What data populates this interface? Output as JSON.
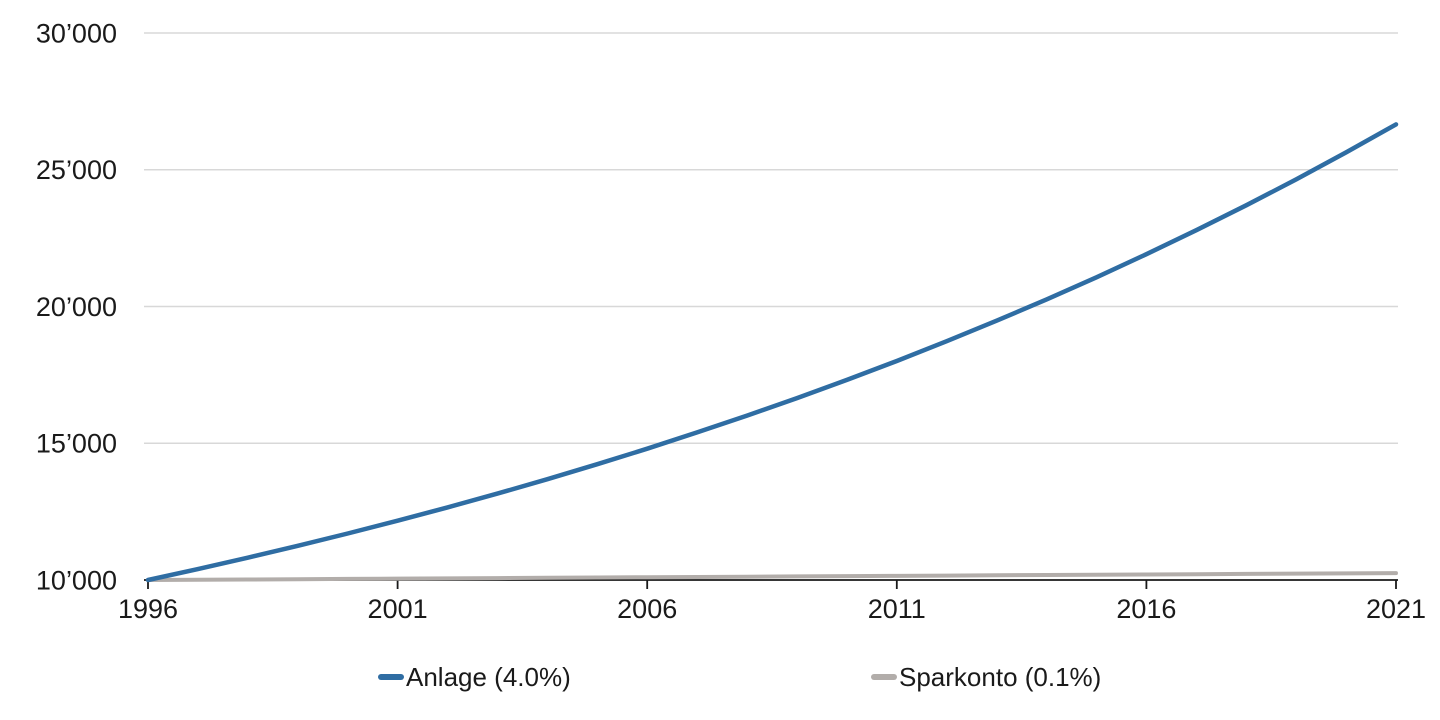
{
  "chart_data": {
    "type": "line",
    "title": "",
    "xlabel": "",
    "ylabel": "",
    "x": [
      1996,
      1997,
      1998,
      1999,
      2000,
      2001,
      2002,
      2003,
      2004,
      2005,
      2006,
      2007,
      2008,
      2009,
      2010,
      2011,
      2012,
      2013,
      2014,
      2015,
      2016,
      2017,
      2018,
      2019,
      2020,
      2021
    ],
    "series": [
      {
        "name": "Anlage (4.0%)",
        "color": "#2f6da3",
        "values": [
          10000,
          10400,
          10816,
          11249,
          11699,
          12167,
          12653,
          13159,
          13686,
          14233,
          14802,
          15395,
          16010,
          16651,
          17317,
          18009,
          18730,
          19479,
          20258,
          21068,
          21911,
          22788,
          23699,
          24647,
          25633,
          26658
        ]
      },
      {
        "name": "Sparkonto (0.1%)",
        "color": "#b2adaa",
        "values": [
          10000,
          10010,
          10020,
          10030,
          10040,
          10050,
          10060,
          10070,
          10081,
          10091,
          10101,
          10111,
          10121,
          10131,
          10141,
          10151,
          10161,
          10171,
          10182,
          10192,
          10202,
          10212,
          10222,
          10233,
          10243,
          10253
        ]
      }
    ],
    "xlim": [
      1996,
      2021
    ],
    "ylim": [
      10000,
      30000
    ],
    "xticks": {
      "values": [
        1996,
        2001,
        2006,
        2011,
        2016,
        2021
      ],
      "labels": [
        "1996",
        "2001",
        "2006",
        "2011",
        "2016",
        "2021"
      ]
    },
    "yticks": {
      "values": [
        10000,
        15000,
        20000,
        25000,
        30000
      ],
      "labels": [
        "10’000",
        "15’000",
        "20’000",
        "25’000",
        "30’000"
      ]
    },
    "grid": "horizontal",
    "legend_position": "bottom"
  },
  "legend": {
    "items": [
      {
        "label": "Anlage (4.0%)",
        "color": "#2f6da3"
      },
      {
        "label": "Sparkonto (0.1%)",
        "color": "#b2adaa"
      }
    ]
  },
  "colors": {
    "background": "#ffffff",
    "gridline": "#d8d8d8",
    "axis": "#1a1a1a",
    "text": "#1a1a1a"
  }
}
